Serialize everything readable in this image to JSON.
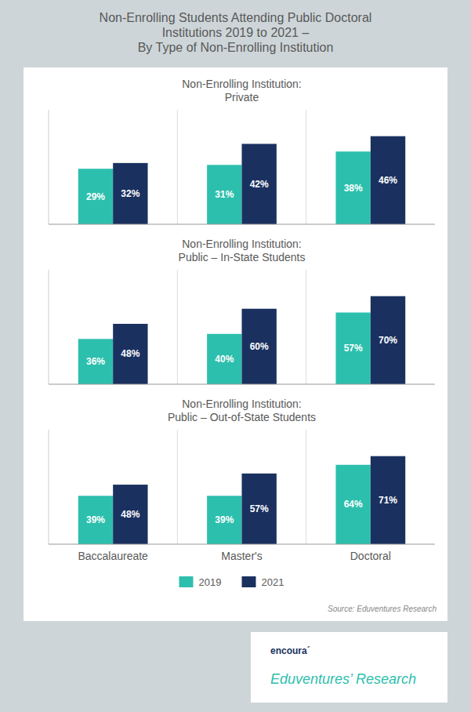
{
  "chart_data": [
    {
      "type": "bar",
      "title": "Non-Enrolling Students Attending Public Doctoral\nInstitutions 2019 to 2021 –\nBy Type of Non-Enrolling Institution",
      "subtitle": "Non-Enrolling Institution:\nPrivate",
      "categories": [
        "Baccalaureate",
        "Master's",
        "Doctoral"
      ],
      "series": [
        {
          "name": "2019",
          "color": "#2dbfad",
          "values": [
            29,
            31,
            38
          ],
          "value_labels": [
            "29%",
            "31%",
            "38%"
          ]
        },
        {
          "name": "2021",
          "color": "#1a3160",
          "values": [
            32,
            42,
            46
          ],
          "value_labels": [
            "32%",
            "42%",
            "46%"
          ]
        }
      ],
      "ylim": [
        0,
        59.8
      ],
      "data_labels": true,
      "tick_labels": false
    },
    {
      "type": "bar",
      "subtitle": "Non-Enrolling Institution:\nPublic – In-State Students",
      "categories": [
        "Baccalaureate",
        "Master's",
        "Doctoral"
      ],
      "series": [
        {
          "name": "2019",
          "color": "#2dbfad",
          "values": [
            36,
            40,
            57
          ],
          "value_labels": [
            "36%",
            "40%",
            "57%"
          ]
        },
        {
          "name": "2021",
          "color": "#1a3160",
          "values": [
            48,
            60,
            70
          ],
          "value_labels": [
            "48%",
            "60%",
            "70%"
          ]
        }
      ],
      "ylim": [
        0,
        91
      ],
      "data_labels": true,
      "tick_labels": false
    },
    {
      "type": "bar",
      "subtitle": "Non-Enrolling Institution:\nPublic – Out-of-State Students",
      "categories": [
        "Baccalaureate",
        "Master's",
        "Doctoral"
      ],
      "series": [
        {
          "name": "2019",
          "color": "#2dbfad",
          "values": [
            39,
            39,
            64
          ],
          "value_labels": [
            "39%",
            "39%",
            "64%"
          ]
        },
        {
          "name": "2021",
          "color": "#1a3160",
          "values": [
            48,
            57,
            71
          ],
          "value_labels": [
            "48%",
            "57%",
            "71%"
          ]
        }
      ],
      "ylim": [
        0,
        92.3
      ],
      "data_labels": true,
      "tick_labels": "x",
      "legend": "bottom",
      "annotations": [
        "Source: Eduventures Research",
        "encoura´",
        "Eduventures’ Research"
      ]
    }
  ]
}
